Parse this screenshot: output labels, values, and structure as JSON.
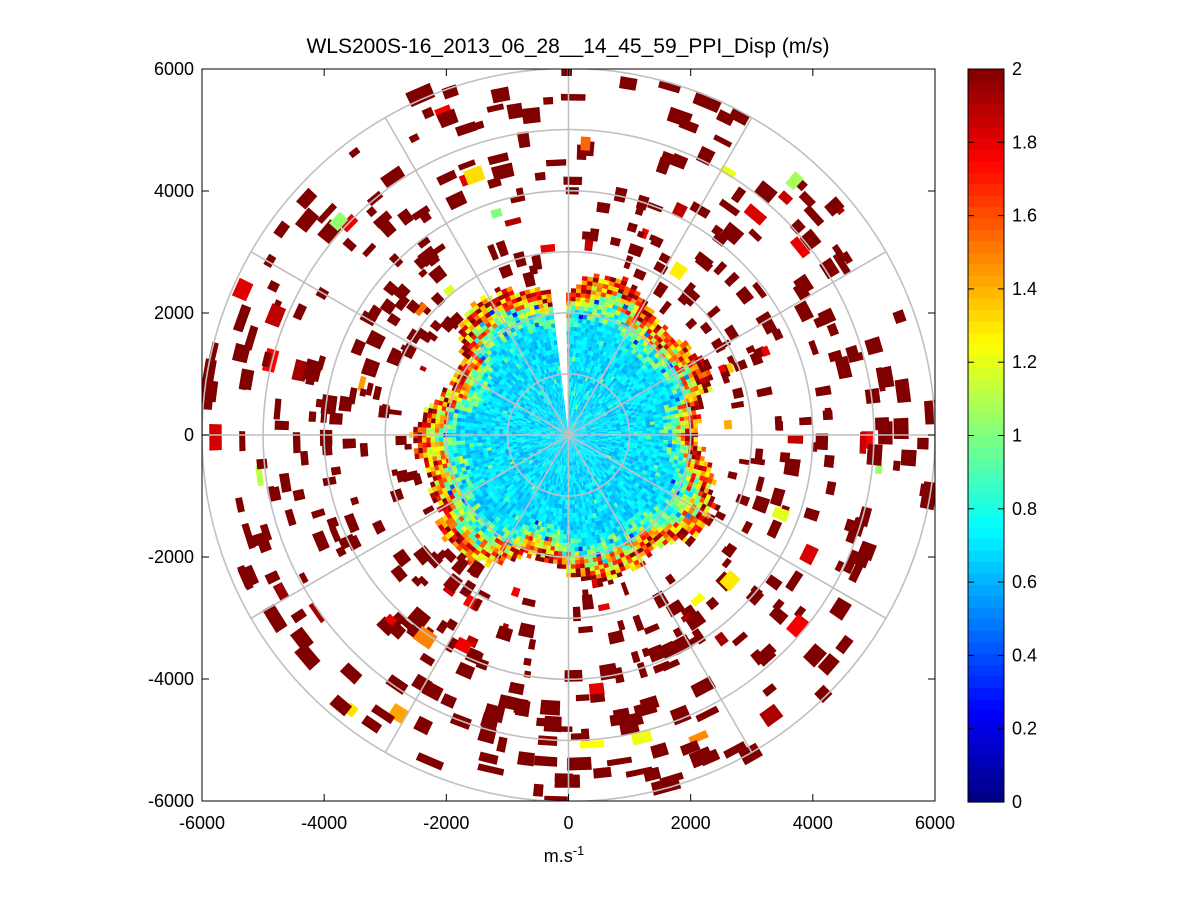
{
  "chart_data": {
    "type": "heatmap",
    "subtype": "polar-ppi",
    "title": "WLS200S-16_2013_06_28__14_45_59_PPI_Disp (m/s)",
    "xlabel": "m.s",
    "xlabel_superscript": "-1",
    "ylabel": "",
    "xlim": [
      -6000,
      6000
    ],
    "ylim": [
      -6000,
      6000
    ],
    "xticks": [
      -6000,
      -4000,
      -2000,
      0,
      2000,
      4000,
      6000
    ],
    "yticks": [
      6000,
      4000,
      2000,
      0,
      -2000,
      -4000,
      -6000
    ],
    "xtick_labels": [
      "-6000",
      "-4000",
      "-2000",
      "0",
      "2000",
      "4000",
      "6000"
    ],
    "ytick_labels": [
      "6000",
      "4000",
      "2000",
      "0",
      "-2000",
      "-4000",
      "-6000"
    ],
    "polar_grid": {
      "ring_radii": [
        1000,
        2000,
        3000,
        4000,
        5000,
        6000
      ],
      "spoke_angles_deg": [
        0,
        30,
        60,
        90,
        120,
        150,
        180,
        210,
        240,
        270,
        300,
        330
      ]
    },
    "data_extent": {
      "dense_core_radius_m": 2700,
      "scattered_max_radius_m": 6000,
      "gap_azimuth_deg": [
        -6,
        0
      ]
    },
    "colorbar": {
      "colormap": "jet",
      "min": 0,
      "max": 2,
      "ticks": [
        0,
        0.2,
        0.4,
        0.6,
        0.8,
        1,
        1.2,
        1.4,
        1.6,
        1.8,
        2
      ],
      "tick_labels": [
        "0",
        "0.2",
        "0.4",
        "0.6",
        "0.8",
        "1",
        "1.2",
        "1.4",
        "1.6",
        "1.8",
        "2"
      ]
    }
  }
}
